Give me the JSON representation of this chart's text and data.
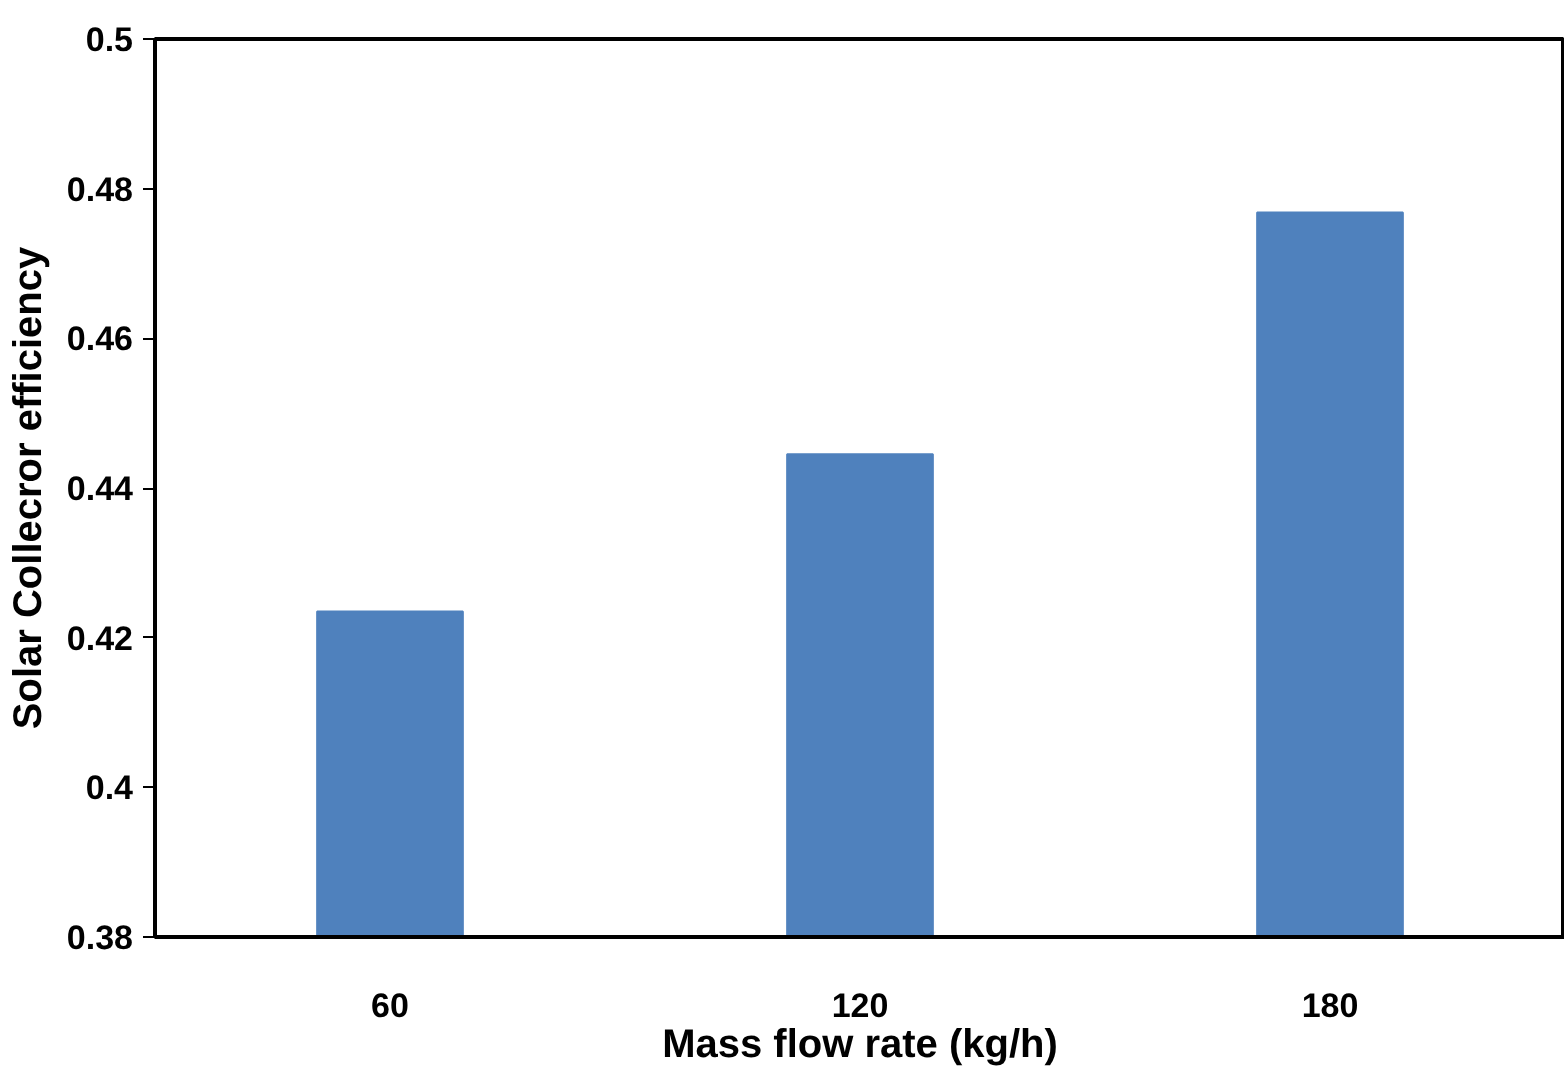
{
  "chart_data": {
    "type": "bar",
    "xlabel": "Mass flow rate (kg/h)",
    "ylabel": "Solar Collecror efficiency",
    "categories": [
      "60",
      "120",
      "180"
    ],
    "values": [
      0.4235,
      0.4445,
      0.4768
    ],
    "color": "#4f81bd",
    "ylim": [
      0.38,
      0.5
    ],
    "yticks": [
      0.38,
      0.4,
      0.42,
      0.44,
      0.46,
      0.48,
      0.5
    ],
    "grid": false
  }
}
